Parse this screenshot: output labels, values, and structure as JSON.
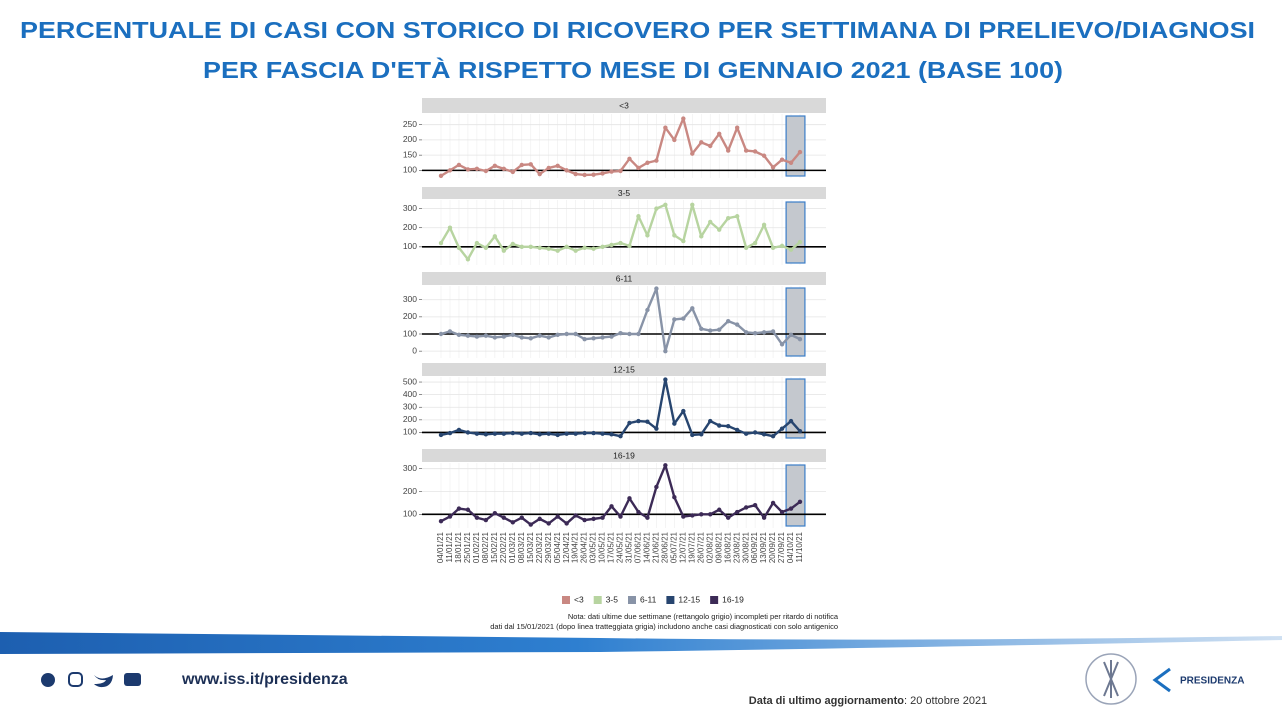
{
  "slide": {
    "title": [
      "PERCENTUALE DI CASI CON STORICO DI RICOVERO PER SETTIMANA DI PRELIEVO/DIAGNOSI",
      "PER FASCIA D'ETÀ RISPETTO MESE DI GENNAIO 2021 (BASE 100)"
    ],
    "footer": {
      "url": "www.iss.it/presidenza",
      "update_label": "Data di ultimo aggiornamento",
      "update_value": ": 20 ottobre 2021",
      "logo": "PRESIDENZA"
    }
  },
  "chart_data": {
    "type": "line",
    "grid": true,
    "legend": "bottom",
    "reference_line": 100,
    "note": [
      "Nota: dati ultime due settimane (rettangolo grigio) incompleti per ritardo di notifica",
      "dati dal 15/01/2021 (dopo linea tratteggiata grigia) includono anche casi diagnosticati con solo antigenico"
    ],
    "categories": [
      "04/01/21",
      "11/01/21",
      "18/01/21",
      "25/01/21",
      "01/02/21",
      "08/02/21",
      "15/02/21",
      "22/02/21",
      "01/03/21",
      "08/03/21",
      "15/03/21",
      "22/03/21",
      "29/03/21",
      "05/04/21",
      "12/04/21",
      "19/04/21",
      "26/04/21",
      "03/05/21",
      "10/05/21",
      "17/05/21",
      "24/05/21",
      "31/05/21",
      "07/06/21",
      "14/06/21",
      "21/06/21",
      "28/06/21",
      "05/07/21",
      "12/07/21",
      "19/07/21",
      "26/07/21",
      "02/08/21",
      "09/08/21",
      "16/08/21",
      "23/08/21",
      "30/08/21",
      "06/09/21",
      "13/09/21",
      "20/09/21",
      "27/09/21",
      "04/10/21",
      "11/10/21"
    ],
    "series": [
      {
        "name": "<3",
        "color": "#c98882",
        "ylim": [
          75,
          285
        ],
        "yticks": [
          100,
          150,
          200,
          250
        ],
        "values": [
          82,
          100,
          118,
          103,
          105,
          98,
          115,
          105,
          95,
          118,
          120,
          88,
          108,
          115,
          100,
          88,
          85,
          86,
          90,
          96,
          98,
          138,
          108,
          125,
          132,
          240,
          200,
          270,
          155,
          192,
          180,
          220,
          165,
          240,
          165,
          162,
          148,
          110,
          135,
          125,
          160
        ]
      },
      {
        "name": "3-5",
        "color": "#b7d4a0",
        "ylim": [
          5,
          345
        ],
        "yticks": [
          100,
          200,
          300
        ],
        "values": [
          120,
          200,
          95,
          35,
          120,
          95,
          155,
          80,
          115,
          100,
          100,
          95,
          90,
          80,
          100,
          80,
          95,
          90,
          100,
          110,
          120,
          105,
          260,
          160,
          300,
          320,
          160,
          130,
          320,
          155,
          230,
          190,
          250,
          260,
          95,
          120,
          215,
          95,
          105,
          85,
          125
        ]
      },
      {
        "name": "6-11",
        "color": "#8893a7",
        "ylim": [
          -40,
          380
        ],
        "yticks": [
          0,
          100,
          200,
          300
        ],
        "values": [
          100,
          115,
          95,
          90,
          85,
          90,
          80,
          85,
          95,
          80,
          75,
          90,
          80,
          95,
          100,
          100,
          70,
          75,
          80,
          85,
          105,
          100,
          100,
          240,
          365,
          0,
          185,
          190,
          250,
          130,
          120,
          125,
          175,
          155,
          110,
          105,
          110,
          115,
          40,
          95,
          70
        ]
      },
      {
        "name": "12-15",
        "color": "#27456f",
        "ylim": [
          40,
          540
        ],
        "yticks": [
          100,
          200,
          300,
          400,
          500
        ],
        "values": [
          80,
          95,
          120,
          100,
          90,
          85,
          90,
          90,
          95,
          90,
          95,
          85,
          90,
          80,
          90,
          90,
          95,
          95,
          90,
          85,
          70,
          175,
          190,
          185,
          130,
          520,
          170,
          270,
          80,
          85,
          190,
          155,
          150,
          120,
          90,
          100,
          85,
          70,
          130,
          190,
          110
        ]
      },
      {
        "name": "16-19",
        "color": "#3c2a56",
        "ylim": [
          40,
          325
        ],
        "yticks": [
          100,
          200,
          300
        ],
        "values": [
          70,
          90,
          125,
          120,
          85,
          75,
          105,
          85,
          65,
          85,
          55,
          80,
          60,
          90,
          60,
          95,
          75,
          80,
          85,
          135,
          90,
          170,
          110,
          85,
          220,
          315,
          175,
          90,
          95,
          100,
          100,
          120,
          85,
          110,
          130,
          140,
          85,
          150,
          110,
          125,
          155
        ]
      }
    ]
  }
}
